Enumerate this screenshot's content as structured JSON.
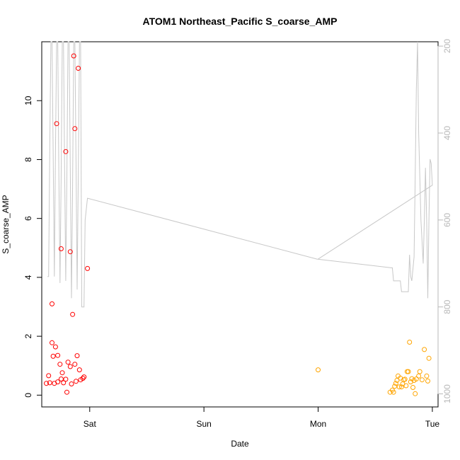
{
  "chart_data": {
    "type": "scatter",
    "title": "ATOM1 Northeast_Pacific S_coarse_AMP",
    "xlabel": "Date",
    "ylabel": "S_coarse_AMP",
    "x_unit": "days",
    "xlim": [
      -0.42,
      3.05
    ],
    "ylim": [
      -0.4,
      12.0
    ],
    "x_ticks": [
      {
        "x": 0,
        "label": "Sat"
      },
      {
        "x": 1,
        "label": "Sun"
      },
      {
        "x": 2,
        "label": "Mon"
      },
      {
        "x": 3,
        "label": "Tue"
      }
    ],
    "y_ticks": [
      0,
      2,
      4,
      6,
      8,
      10
    ],
    "right_axis": {
      "color": "#b8b8b8",
      "reversed": true,
      "lim": [
        1030,
        190
      ],
      "ticks": [
        200,
        400,
        600,
        800,
        1000
      ]
    },
    "grid": false,
    "legend": "none",
    "series": [
      {
        "color": "#ff0000",
        "marker": "open-circle",
        "points": [
          [
            -0.38,
            0.4
          ],
          [
            -0.36,
            0.66
          ],
          [
            -0.35,
            0.42
          ],
          [
            -0.33,
            3.1
          ],
          [
            -0.33,
            1.78
          ],
          [
            -0.32,
            1.32
          ],
          [
            -0.31,
            0.4
          ],
          [
            -0.3,
            1.64
          ],
          [
            -0.29,
            9.22
          ],
          [
            -0.28,
            1.35
          ],
          [
            -0.28,
            0.45
          ],
          [
            -0.26,
            1.05
          ],
          [
            -0.25,
            4.97
          ],
          [
            -0.25,
            0.55
          ],
          [
            -0.24,
            0.76
          ],
          [
            -0.23,
            0.42
          ],
          [
            -0.21,
            8.27
          ],
          [
            -0.21,
            0.54
          ],
          [
            -0.2,
            0.1
          ],
          [
            -0.19,
            1.12
          ],
          [
            -0.17,
            4.87
          ],
          [
            -0.17,
            0.97
          ],
          [
            -0.16,
            0.38
          ],
          [
            -0.15,
            2.74
          ],
          [
            -0.14,
            11.52
          ],
          [
            -0.13,
            9.05
          ],
          [
            -0.13,
            1.05
          ],
          [
            -0.12,
            0.47
          ],
          [
            -0.11,
            1.34
          ],
          [
            -0.1,
            11.1
          ],
          [
            -0.09,
            0.86
          ],
          [
            -0.08,
            0.52
          ],
          [
            -0.06,
            0.57
          ],
          [
            -0.05,
            0.62
          ],
          [
            -0.02,
            4.3
          ]
        ]
      },
      {
        "color": "#ffa500",
        "marker": "open-circle",
        "points": [
          [
            2.0,
            0.86
          ],
          [
            2.63,
            0.1
          ],
          [
            2.65,
            0.17
          ],
          [
            2.66,
            0.1
          ],
          [
            2.67,
            0.3
          ],
          [
            2.68,
            0.4
          ],
          [
            2.69,
            0.5
          ],
          [
            2.7,
            0.65
          ],
          [
            2.71,
            0.28
          ],
          [
            2.72,
            0.58
          ],
          [
            2.73,
            0.28
          ],
          [
            2.74,
            0.38
          ],
          [
            2.75,
            0.52
          ],
          [
            2.76,
            0.54
          ],
          [
            2.77,
            0.32
          ],
          [
            2.78,
            0.8
          ],
          [
            2.79,
            0.8
          ],
          [
            2.8,
            1.8
          ],
          [
            2.81,
            0.45
          ],
          [
            2.82,
            0.56
          ],
          [
            2.83,
            0.26
          ],
          [
            2.84,
            0.5
          ],
          [
            2.85,
            0.05
          ],
          [
            2.86,
            0.55
          ],
          [
            2.88,
            0.65
          ],
          [
            2.89,
            0.8
          ],
          [
            2.91,
            0.52
          ],
          [
            2.93,
            1.55
          ],
          [
            2.95,
            0.65
          ],
          [
            2.96,
            0.48
          ],
          [
            2.97,
            1.25
          ]
        ]
      }
    ],
    "line_series": {
      "color": "#c8c8c8",
      "axis": "right",
      "points": [
        [
          -0.37,
          730
        ],
        [
          -0.36,
          730
        ],
        [
          -0.35,
          440
        ],
        [
          -0.34,
          190
        ],
        [
          -0.33,
          190
        ],
        [
          -0.32,
          440
        ],
        [
          -0.31,
          730
        ],
        [
          -0.3,
          440
        ],
        [
          -0.29,
          190
        ],
        [
          -0.28,
          190
        ],
        [
          -0.27,
          500
        ],
        [
          -0.26,
          745
        ],
        [
          -0.25,
          500
        ],
        [
          -0.24,
          190
        ],
        [
          -0.23,
          190
        ],
        [
          -0.22,
          480
        ],
        [
          -0.21,
          740
        ],
        [
          -0.2,
          500
        ],
        [
          -0.19,
          190
        ],
        [
          -0.18,
          190
        ],
        [
          -0.17,
          480
        ],
        [
          -0.16,
          780
        ],
        [
          -0.15,
          520
        ],
        [
          -0.14,
          190
        ],
        [
          -0.13,
          190
        ],
        [
          -0.12,
          460
        ],
        [
          -0.11,
          760
        ],
        [
          -0.1,
          500
        ],
        [
          -0.09,
          190
        ],
        [
          -0.08,
          190
        ],
        [
          -0.07,
          800
        ],
        [
          -0.05,
          800
        ],
        [
          -0.04,
          600
        ],
        [
          -0.02,
          550
        ],
        [
          1.99,
          690
        ],
        [
          2.64,
          710
        ],
        [
          2.65,
          710
        ],
        [
          2.66,
          740
        ],
        [
          2.69,
          740
        ],
        [
          2.7,
          740
        ],
        [
          2.72,
          740
        ],
        [
          2.73,
          765
        ],
        [
          2.78,
          765
        ],
        [
          2.79,
          765
        ],
        [
          2.8,
          680
        ],
        [
          2.81,
          730
        ],
        [
          2.82,
          740
        ],
        [
          2.84,
          685
        ],
        [
          2.85,
          500
        ],
        [
          2.86,
          300
        ],
        [
          2.87,
          190
        ],
        [
          2.88,
          400
        ],
        [
          2.89,
          500
        ],
        [
          2.9,
          600
        ],
        [
          2.91,
          650
        ],
        [
          2.92,
          700
        ],
        [
          2.93,
          600
        ],
        [
          2.94,
          480
        ],
        [
          2.95,
          600
        ],
        [
          2.96,
          780
        ],
        [
          2.97,
          600
        ],
        [
          2.98,
          460
        ],
        [
          2.99,
          470
        ],
        [
          3.0,
          520
        ],
        [
          2.0,
          690
        ],
        [
          3.0,
          520
        ]
      ]
    }
  }
}
